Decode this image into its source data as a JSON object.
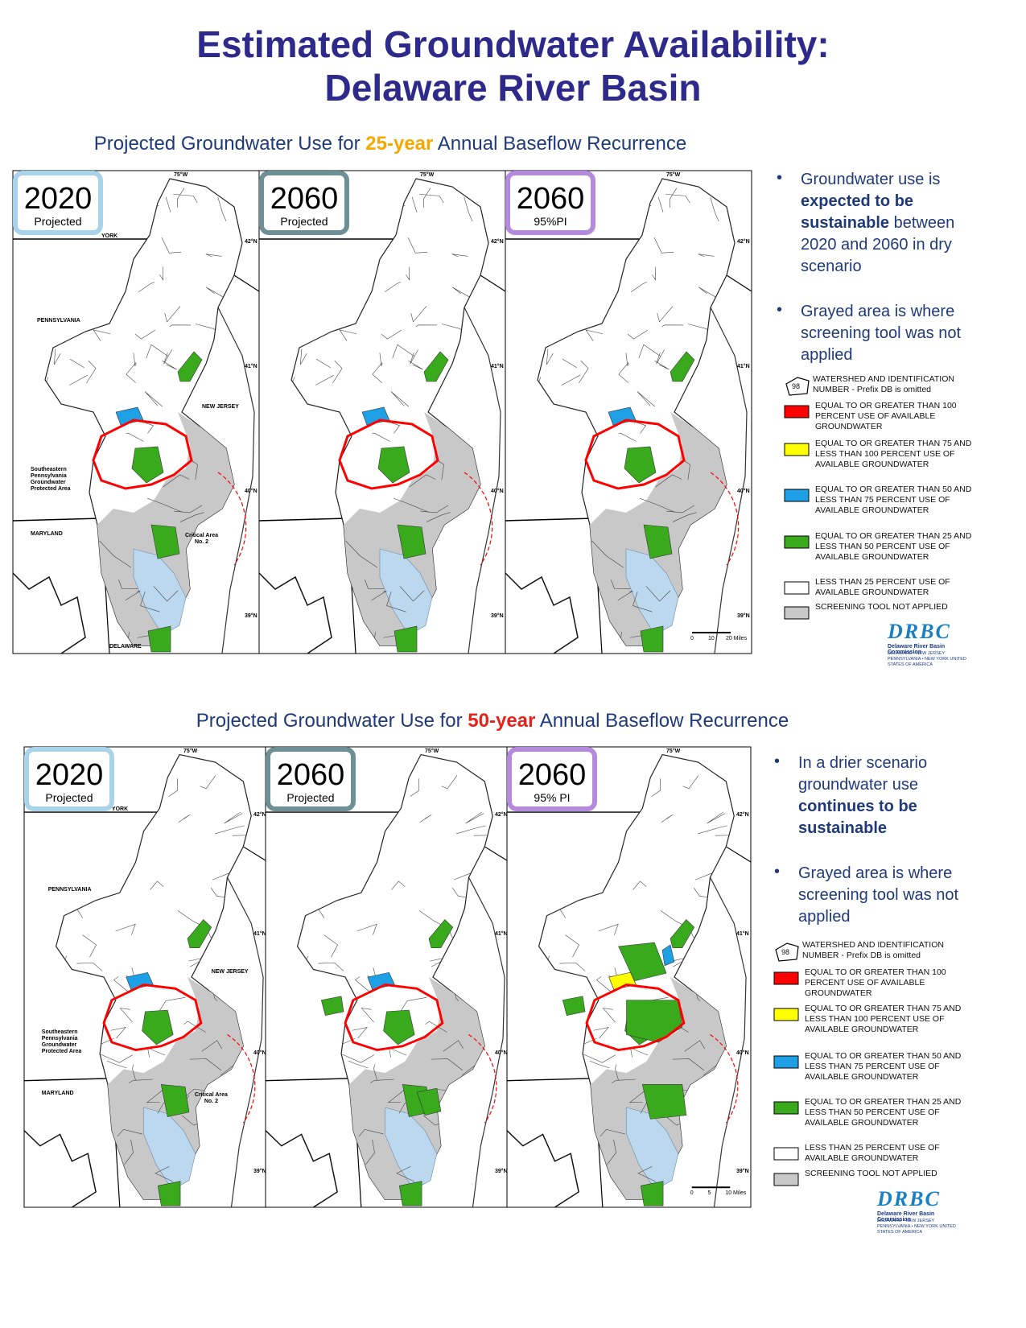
{
  "header": {
    "title": [
      "Estimated Groundwater Availability:",
      "Delaware River Basin"
    ]
  },
  "sections": [
    {
      "subtitle": [
        {
          "text": "Projected Groundwater Use for ",
          "color": "#1f3a7a"
        },
        {
          "text": "25-year",
          "color": "#f5a800"
        },
        {
          "text": " Annual Baseflow Recurrence",
          "color": "#1f3a7a"
        }
      ],
      "panels": [
        {
          "year": "2020",
          "label": "Projected",
          "border_color": "#a9d3ea"
        },
        {
          "year": "2060",
          "label": "Projected",
          "border_color": "#6e8f96"
        },
        {
          "year": "2060",
          "label": "95%PI",
          "border_color": "#b589dc"
        }
      ],
      "map_labels": {
        "longitude": "75°W",
        "latitudes": [
          "42°N",
          "41°N",
          "40°N",
          "39°N"
        ],
        "states": [
          "YORK",
          "PENNSYLVANIA",
          "NEW JERSEY",
          "MARYLAND",
          "DELAWARE"
        ],
        "protected_area": "Southeastern Pennsylvania Groundwater Protected Area",
        "critical_area": "Critical Area No. 2"
      },
      "scale": [
        "0",
        "10",
        "20 Miles"
      ],
      "bullets": [
        [
          {
            "text": "Groundwater use is ",
            "bold": false
          },
          {
            "text": "expected to be sustainable",
            "bold": true
          },
          {
            "text": " between 2020 and 2060 in dry scenario",
            "bold": false
          }
        ],
        [
          {
            "text": "Grayed area is where screening tool was not applied",
            "bold": false
          }
        ]
      ],
      "legend": {
        "symbol_number": "98",
        "symbol_text": "WATERSHED AND IDENTIFICATION NUMBER - Prefix DB is omitted",
        "items": [
          {
            "color": "#ff0000",
            "text": "EQUAL TO OR GREATER THAN 100 PERCENT USE OF AVAILABLE GROUNDWATER"
          },
          {
            "color": "#ffff00",
            "text": "EQUAL TO OR GREATER THAN 75 AND LESS THAN 100 PERCENT USE OF AVAILABLE GROUNDWATER"
          },
          {
            "color": "#1ea0e6",
            "text": "EQUAL TO OR GREATER THAN 50 AND LESS THAN 75 PERCENT USE OF AVAILABLE GROUNDWATER"
          },
          {
            "color": "#3aaa1d",
            "text": "EQUAL TO OR GREATER THAN 25 AND LESS THAN 50 PERCENT USE OF AVAILABLE GROUNDWATER"
          },
          {
            "color": "#ffffff",
            "text": "LESS THAN 25 PERCENT USE OF AVAILABLE GROUNDWATER"
          },
          {
            "color": "#c8c8c8",
            "text": "SCREENING TOOL NOT APPLIED"
          }
        ]
      },
      "logo": {
        "mark": "DRBC",
        "name": "Delaware River Basin Commission",
        "states": "DELAWARE • NEW JERSEY PENNSYLVANIA • NEW YORK UNITED STATES OF AMERICA"
      }
    },
    {
      "subtitle": [
        {
          "text": "Projected Groundwater Use for ",
          "color": "#1f3a7a"
        },
        {
          "text": "50-year",
          "color": "#e8211b"
        },
        {
          "text": " Annual Baseflow Recurrence",
          "color": "#1f3a7a"
        }
      ],
      "panels": [
        {
          "year": "2020",
          "label": "Projected",
          "border_color": "#a9d3ea"
        },
        {
          "year": "2060",
          "label": "Projected",
          "border_color": "#6e8f96"
        },
        {
          "year": "2060",
          "label": "95% PI",
          "border_color": "#b589dc"
        }
      ],
      "map_labels": {
        "longitude": "75°W",
        "latitudes": [
          "42°N",
          "41°N",
          "40°N",
          "39°N"
        ],
        "states": [
          "YORK",
          "PENNSYLVANIA",
          "NEW JERSEY",
          "MARYLAND"
        ],
        "protected_area": "Southeastern Pennsylvania Groundwater Protected Area",
        "critical_area": "Critical Area No. 2"
      },
      "scale": [
        "0",
        "5",
        "10 Miles"
      ],
      "bullets": [
        [
          {
            "text": "In a drier scenario groundwater use ",
            "bold": false
          },
          {
            "text": "continues to be sustainable",
            "bold": true
          }
        ],
        [
          {
            "text": "Grayed area is where screening tool was not applied",
            "bold": false
          }
        ]
      ],
      "legend": {
        "symbol_number": "98",
        "symbol_text": "WATERSHED AND IDENTIFICATION NUMBER - Prefix DB is omitted",
        "items": [
          {
            "color": "#ff0000",
            "text": "EQUAL TO OR GREATER THAN 100 PERCENT USE OF AVAILABLE GROUNDWATER"
          },
          {
            "color": "#ffff00",
            "text": "EQUAL TO OR GREATER THAN 75 AND LESS THAN 100 PERCENT USE OF AVAILABLE GROUNDWATER"
          },
          {
            "color": "#1ea0e6",
            "text": "EQUAL TO OR GREATER THAN 50 AND LESS THAN 75 PERCENT USE OF AVAILABLE GROUNDWATER"
          },
          {
            "color": "#3aaa1d",
            "text": "EQUAL TO OR GREATER THAN 25 AND LESS THAN 50 PERCENT USE OF AVAILABLE GROUNDWATER"
          },
          {
            "color": "#ffffff",
            "text": "LESS THAN 25 PERCENT USE OF AVAILABLE GROUNDWATER"
          },
          {
            "color": "#c8c8c8",
            "text": "SCREENING TOOL NOT APPLIED"
          }
        ]
      },
      "logo": {
        "mark": "DRBC",
        "name": "Delaware River Basin Commission",
        "states": "DELAWARE • NEW JERSEY PENNSYLVANIA • NEW YORK UNITED STATES OF AMERICA"
      }
    }
  ]
}
